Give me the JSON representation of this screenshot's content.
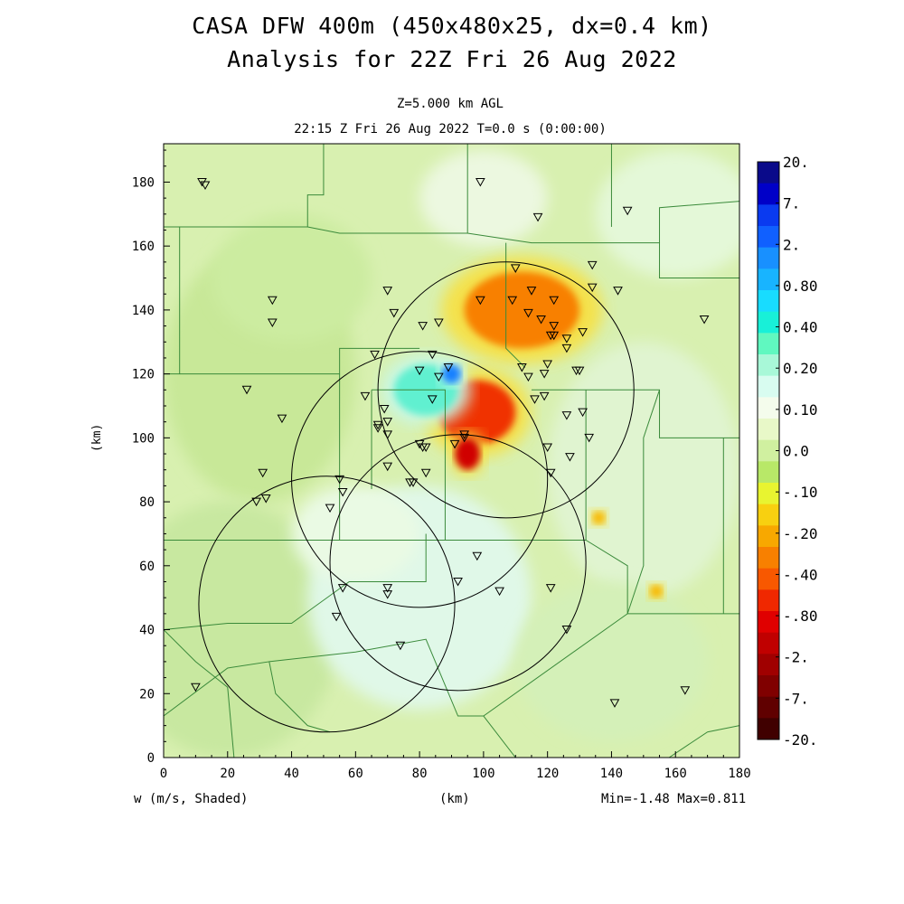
{
  "title": {
    "line1": "CASA DFW 400m (450x480x25, dx=0.4 km)",
    "line2": "Analysis for 22Z Fri 26 Aug 2022"
  },
  "subtitle": {
    "level": "Z=5.000 km AGL",
    "time": "22:15 Z Fri 26 Aug 2022   T=0.0 s (0:00:00)"
  },
  "footer": {
    "variable": "w (m/s, Shaded)",
    "xunit": "(km)",
    "minmax": "Min=-1.48 Max=0.811"
  },
  "colorbar": {
    "labels": [
      "20.",
      "7.",
      "2.",
      "0.80",
      "0.40",
      "0.20",
      "0.10",
      "0.0",
      "-.10",
      "-.20",
      "-.40",
      "-.80",
      "-2.",
      "-7.",
      "-20."
    ],
    "colors": [
      "#0a0a8a",
      "#0000c8",
      "#0a3af0",
      "#1060ff",
      "#1890ff",
      "#18b4ff",
      "#18dcff",
      "#18f0d8",
      "#60f8c0",
      "#a8f8d8",
      "#d8fcf0",
      "#f4fcec",
      "#e8f8c8",
      "#d0f0a0",
      "#b8e868",
      "#e8f430",
      "#f8d010",
      "#f8a800",
      "#f88000",
      "#f85800",
      "#f02800",
      "#e00000",
      "#c00000",
      "#a00000",
      "#800000",
      "#600000",
      "#400000"
    ]
  },
  "chart_data": {
    "type": "heatmap",
    "variable": "w (m/s, Shaded)",
    "xlabel": "(km)",
    "ylabel": "(km)",
    "xlim": [
      0,
      180
    ],
    "ylim": [
      0,
      192
    ],
    "xticks": [
      0,
      20,
      40,
      60,
      80,
      100,
      120,
      140,
      160,
      180
    ],
    "yticks": [
      0,
      20,
      40,
      60,
      80,
      100,
      120,
      140,
      160,
      180
    ],
    "min": -1.48,
    "max": 0.811,
    "radar_range_rings": [
      {
        "cx": 107,
        "cy": 115,
        "r": 40
      },
      {
        "cx": 80,
        "cy": 87,
        "r": 40
      },
      {
        "cx": 92,
        "cy": 61,
        "r": 40
      },
      {
        "cx": 51,
        "cy": 48,
        "r": 40
      }
    ],
    "features": [
      {
        "kind": "downdraft",
        "cx": 112,
        "cy": 140,
        "rx": 18,
        "ry": 12,
        "value": -0.6
      },
      {
        "kind": "downdraft",
        "cx": 98,
        "cy": 108,
        "rx": 12,
        "ry": 10,
        "value": -0.9
      },
      {
        "kind": "downdraft",
        "cx": 95,
        "cy": 95,
        "rx": 4,
        "ry": 5,
        "value": -1.4
      },
      {
        "kind": "updraft",
        "cx": 82,
        "cy": 115,
        "rx": 10,
        "ry": 8,
        "value": 0.3
      },
      {
        "kind": "updraft",
        "cx": 90,
        "cy": 120,
        "rx": 3,
        "ry": 3,
        "value": 0.8
      },
      {
        "kind": "downdraft",
        "cx": 154,
        "cy": 52,
        "rx": 2,
        "ry": 2,
        "value": -0.3
      },
      {
        "kind": "downdraft",
        "cx": 136,
        "cy": 75,
        "rx": 2,
        "ry": 2,
        "value": -0.3
      }
    ],
    "stations": [
      [
        12,
        180
      ],
      [
        13,
        179
      ],
      [
        99,
        180
      ],
      [
        117,
        169
      ],
      [
        145,
        171
      ],
      [
        134,
        154
      ],
      [
        110,
        153
      ],
      [
        34,
        143
      ],
      [
        34,
        136
      ],
      [
        70,
        146
      ],
      [
        72,
        139
      ],
      [
        81,
        135
      ],
      [
        86,
        136
      ],
      [
        99,
        143
      ],
      [
        109,
        143
      ],
      [
        115,
        146
      ],
      [
        122,
        143
      ],
      [
        114,
        139
      ],
      [
        118,
        137
      ],
      [
        121,
        132
      ],
      [
        122,
        132
      ],
      [
        122,
        135
      ],
      [
        126,
        131
      ],
      [
        126,
        128
      ],
      [
        131,
        133
      ],
      [
        134,
        147
      ],
      [
        142,
        146
      ],
      [
        169,
        137
      ],
      [
        66,
        126
      ],
      [
        84,
        126
      ],
      [
        89,
        122
      ],
      [
        80,
        121
      ],
      [
        86,
        119
      ],
      [
        112,
        122
      ],
      [
        114,
        119
      ],
      [
        119,
        120
      ],
      [
        120,
        123
      ],
      [
        129,
        121
      ],
      [
        130,
        121
      ],
      [
        26,
        115
      ],
      [
        63,
        113
      ],
      [
        84,
        112
      ],
      [
        116,
        112
      ],
      [
        119,
        113
      ],
      [
        126,
        107
      ],
      [
        131,
        108
      ],
      [
        133,
        100
      ],
      [
        37,
        106
      ],
      [
        67,
        104
      ],
      [
        67,
        103
      ],
      [
        70,
        105
      ],
      [
        69,
        109
      ],
      [
        70,
        101
      ],
      [
        80,
        98
      ],
      [
        81,
        97
      ],
      [
        82,
        97
      ],
      [
        91,
        98
      ],
      [
        94,
        100
      ],
      [
        94,
        101
      ],
      [
        120,
        97
      ],
      [
        127,
        94
      ],
      [
        31,
        89
      ],
      [
        70,
        91
      ],
      [
        82,
        89
      ],
      [
        78,
        86
      ],
      [
        77,
        86
      ],
      [
        121,
        89
      ],
      [
        55,
        87
      ],
      [
        56,
        83
      ],
      [
        29,
        80
      ],
      [
        32,
        81
      ],
      [
        52,
        78
      ],
      [
        98,
        63
      ],
      [
        56,
        53
      ],
      [
        70,
        53
      ],
      [
        70,
        51
      ],
      [
        92,
        55
      ],
      [
        105,
        52
      ],
      [
        121,
        53
      ],
      [
        54,
        44
      ],
      [
        74,
        35
      ],
      [
        126,
        40
      ],
      [
        10,
        22
      ],
      [
        141,
        17
      ],
      [
        163,
        21
      ]
    ]
  }
}
